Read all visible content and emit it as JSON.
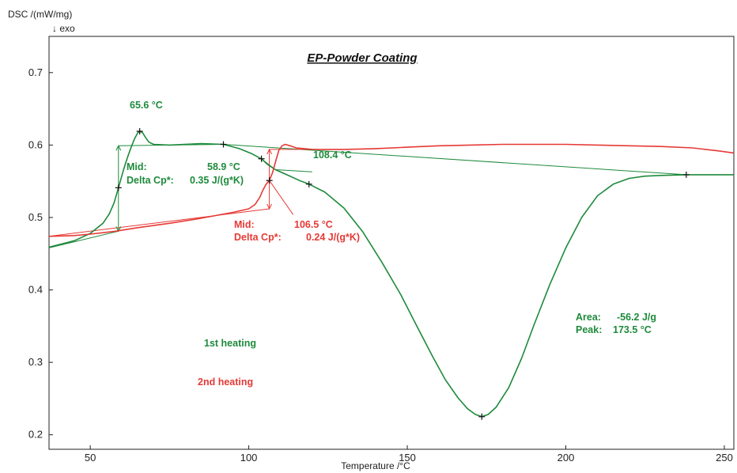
{
  "chart_data": {
    "type": "line",
    "title": "EP-Powder Coating",
    "ylabel": "DSC /(mW/mg)",
    "ylabel_sub": "↓ exo",
    "xlabel": "Temperature /°C",
    "xlim": [
      37,
      253
    ],
    "ylim": [
      0.18,
      0.75
    ],
    "x_ticks": [
      50,
      100,
      150,
      200,
      250
    ],
    "y_ticks": [
      0.2,
      0.3,
      0.4,
      0.5,
      0.6,
      0.7
    ],
    "grid": false,
    "colors": {
      "first": "#1e8a3c",
      "second": "#e53a36"
    },
    "series": [
      {
        "name": "1st heating",
        "color": "#1e8a3c",
        "points": [
          [
            37,
            0.459
          ],
          [
            45,
            0.468
          ],
          [
            50,
            0.478
          ],
          [
            54,
            0.492
          ],
          [
            56,
            0.505
          ],
          [
            57.5,
            0.52
          ],
          [
            58.9,
            0.541
          ],
          [
            60,
            0.558
          ],
          [
            61,
            0.573
          ],
          [
            62,
            0.586
          ],
          [
            63,
            0.598
          ],
          [
            64,
            0.609
          ],
          [
            65,
            0.617
          ],
          [
            65.6,
            0.619
          ],
          [
            66.5,
            0.617
          ],
          [
            67.5,
            0.61
          ],
          [
            68.5,
            0.604
          ],
          [
            70,
            0.601
          ],
          [
            75,
            0.6
          ],
          [
            85,
            0.602
          ],
          [
            92,
            0.601
          ],
          [
            97,
            0.595
          ],
          [
            101,
            0.588
          ],
          [
            104,
            0.581
          ],
          [
            106,
            0.573
          ],
          [
            108.4,
            0.566
          ],
          [
            112,
            0.559
          ],
          [
            116,
            0.551
          ],
          [
            119,
            0.546
          ],
          [
            124,
            0.535
          ],
          [
            130,
            0.513
          ],
          [
            136,
            0.48
          ],
          [
            142,
            0.438
          ],
          [
            148,
            0.393
          ],
          [
            153,
            0.35
          ],
          [
            158,
            0.308
          ],
          [
            162,
            0.276
          ],
          [
            166,
            0.251
          ],
          [
            169,
            0.236
          ],
          [
            171.5,
            0.228
          ],
          [
            173.5,
            0.225
          ],
          [
            175.5,
            0.228
          ],
          [
            178,
            0.238
          ],
          [
            182,
            0.265
          ],
          [
            186,
            0.305
          ],
          [
            190,
            0.352
          ],
          [
            195,
            0.408
          ],
          [
            200,
            0.458
          ],
          [
            205,
            0.5
          ],
          [
            210,
            0.53
          ],
          [
            215,
            0.546
          ],
          [
            220,
            0.554
          ],
          [
            225,
            0.557
          ],
          [
            230,
            0.558
          ],
          [
            238,
            0.559
          ],
          [
            245,
            0.559
          ],
          [
            253,
            0.559
          ]
        ]
      },
      {
        "name": "2nd heating",
        "color": "#e53a36",
        "points": [
          [
            37,
            0.474
          ],
          [
            45,
            0.475
          ],
          [
            50,
            0.477
          ],
          [
            58,
            0.481
          ],
          [
            65,
            0.486
          ],
          [
            75,
            0.492
          ],
          [
            85,
            0.499
          ],
          [
            95,
            0.507
          ],
          [
            100,
            0.512
          ],
          [
            102,
            0.518
          ],
          [
            103.5,
            0.528
          ],
          [
            104.5,
            0.538
          ],
          [
            105.5,
            0.546
          ],
          [
            106.5,
            0.551
          ],
          [
            107.5,
            0.562
          ],
          [
            108.5,
            0.578
          ],
          [
            109.5,
            0.593
          ],
          [
            110.5,
            0.599
          ],
          [
            111.5,
            0.601
          ],
          [
            113,
            0.599
          ],
          [
            115,
            0.596
          ],
          [
            120,
            0.594
          ],
          [
            130,
            0.594
          ],
          [
            140,
            0.595
          ],
          [
            150,
            0.597
          ],
          [
            160,
            0.599
          ],
          [
            170,
            0.6
          ],
          [
            180,
            0.601
          ],
          [
            190,
            0.601
          ],
          [
            200,
            0.601
          ],
          [
            210,
            0.6
          ],
          [
            220,
            0.599
          ],
          [
            230,
            0.598
          ],
          [
            240,
            0.596
          ],
          [
            248,
            0.592
          ],
          [
            253,
            0.589
          ]
        ]
      }
    ],
    "construction_lines": [
      {
        "color": "#1e8a3c",
        "points": [
          [
            37,
            0.458
          ],
          [
            58.9,
            0.481
          ]
        ]
      },
      {
        "color": "#1e8a3c",
        "points": [
          [
            58.9,
            0.599
          ],
          [
            92,
            0.601
          ]
        ]
      },
      {
        "color": "#1e8a3c",
        "points": [
          [
            58.9,
            0.481
          ],
          [
            58.9,
            0.599
          ]
        ]
      },
      {
        "color": "#1e8a3c",
        "points": [
          [
            92,
            0.601
          ],
          [
            238,
            0.559
          ]
        ]
      },
      {
        "color": "#1e8a3c",
        "points": [
          [
            104,
            0.581
          ],
          [
            108.4,
            0.566
          ],
          [
            120,
            0.563
          ]
        ]
      },
      {
        "color": "#e53a36",
        "points": [
          [
            37,
            0.474
          ],
          [
            106.5,
            0.512
          ]
        ]
      },
      {
        "color": "#e53a36",
        "points": [
          [
            106.5,
            0.594
          ],
          [
            120,
            0.594
          ]
        ]
      },
      {
        "color": "#e53a36",
        "points": [
          [
            106.5,
            0.512
          ],
          [
            106.5,
            0.594
          ]
        ]
      },
      {
        "color": "#e53a36",
        "points": [
          [
            106.5,
            0.551
          ],
          [
            114,
            0.504
          ]
        ]
      }
    ],
    "markers": [
      {
        "color": "#1e8a3c",
        "point": [
          58.9,
          0.541
        ]
      },
      {
        "color": "#1e8a3c",
        "point": [
          65.6,
          0.619
        ]
      },
      {
        "color": "#1e8a3c",
        "point": [
          92,
          0.601
        ]
      },
      {
        "color": "#1e8a3c",
        "point": [
          104,
          0.581
        ]
      },
      {
        "color": "#1e8a3c",
        "point": [
          119,
          0.546
        ]
      },
      {
        "color": "#1e8a3c",
        "point": [
          173.5,
          0.225
        ]
      },
      {
        "color": "#1e8a3c",
        "point": [
          238,
          0.559
        ]
      },
      {
        "color": "#e53a36",
        "point": [
          106.5,
          0.551
        ]
      }
    ],
    "annotations": {
      "peak1_label": "65.6 °C",
      "mid1_label": "Mid:",
      "mid1_value": "58.9 °C",
      "dcp1_label": "Delta Cp*:",
      "dcp1_value": "0.35 J/(g*K)",
      "onset1_label": "108.4 °C",
      "mid2_label": "Mid:",
      "mid2_value": "106.5 °C",
      "dcp2_label": "Delta Cp*:",
      "dcp2_value": "0.24 J/(g*K)",
      "area_label": "Area:",
      "area_value": "-56.2 J/g",
      "peak_label": "Peak:",
      "peak_value": "173.5 °C"
    },
    "legend": [
      {
        "name": "1st heating",
        "color": "#1e8a3c"
      },
      {
        "name": "2nd heating",
        "color": "#e53a36"
      }
    ]
  }
}
